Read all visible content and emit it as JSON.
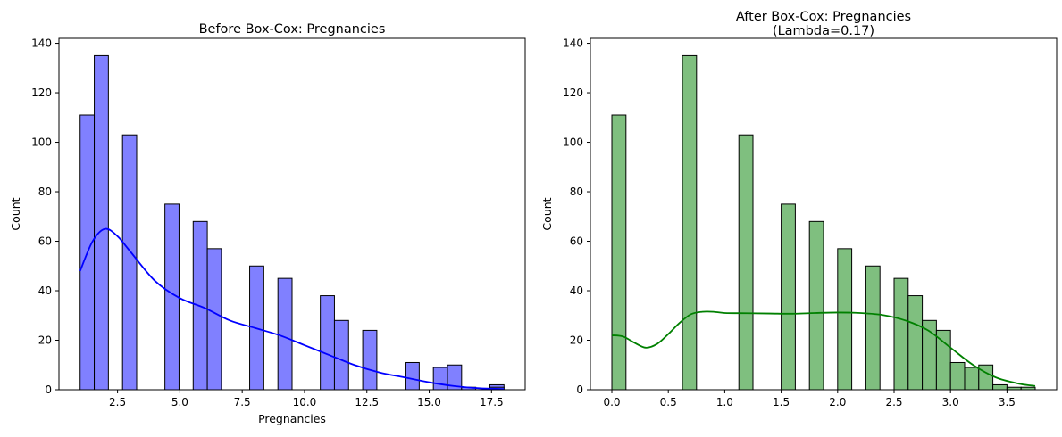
{
  "chart_data": [
    {
      "type": "bar",
      "title": "Before Box-Cox: Pregnancies",
      "xlabel": "Pregnancies",
      "ylabel": "Count",
      "bar_color": "#8080ff",
      "kde_color": "#0000ff",
      "edge_color": "#000000",
      "xlim": [
        0.15,
        18.85
      ],
      "ylim": [
        0,
        142
      ],
      "bin_range": [
        1,
        18
      ],
      "bin_count": 30,
      "counts": [
        111,
        135,
        0,
        103,
        0,
        0,
        75,
        0,
        68,
        57,
        0,
        0,
        50,
        0,
        45,
        0,
        0,
        38,
        28,
        0,
        24,
        0,
        0,
        11,
        0,
        9,
        10,
        0,
        0,
        2
      ],
      "overflow_bins": [
        {
          "x_start": 16.3,
          "x_end": 18.0,
          "values": [
            1,
            0,
            1
          ]
        }
      ],
      "kde": {
        "x": [
          1,
          1.5,
          2,
          2.5,
          3,
          4,
          5,
          6,
          7,
          8,
          9,
          10,
          11,
          12,
          13,
          14,
          15,
          16,
          17,
          18
        ],
        "y": [
          48,
          60,
          65,
          62,
          56,
          44,
          37,
          33,
          28,
          25,
          22,
          18,
          14,
          10,
          7,
          5,
          3,
          1.5,
          0.6,
          0.3
        ]
      },
      "xticks": [
        "2.5",
        "5.0",
        "7.5",
        "10.0",
        "12.5",
        "15.0",
        "17.5"
      ],
      "xtick_values": [
        2.5,
        5.0,
        7.5,
        10.0,
        12.5,
        15.0,
        17.5
      ],
      "yticks": [
        "0",
        "20",
        "40",
        "60",
        "80",
        "100",
        "120",
        "140"
      ],
      "ytick_values": [
        0,
        20,
        40,
        60,
        80,
        100,
        120,
        140
      ]
    },
    {
      "type": "bar",
      "title": "After Box-Cox: Pregnancies",
      "subtitle": "(Lambda=0.17)",
      "xlabel": "",
      "ylabel": "Count",
      "bar_color": "#7fbf7f",
      "kde_color": "#008000",
      "edge_color": "#000000",
      "xlim": [
        -0.19,
        3.94
      ],
      "ylim": [
        0,
        142
      ],
      "bin_range": [
        0,
        3.75
      ],
      "bin_count": 30,
      "counts": [
        111,
        0,
        0,
        0,
        0,
        135,
        0,
        0,
        0,
        103,
        0,
        0,
        75,
        0,
        68,
        0,
        57,
        0,
        50,
        0,
        45,
        38,
        28,
        24,
        11,
        9,
        10,
        2,
        1,
        1
      ],
      "kde": {
        "x": [
          0,
          0.1,
          0.2,
          0.3,
          0.4,
          0.5,
          0.6,
          0.7,
          0.8,
          0.9,
          1.0,
          1.2,
          1.4,
          1.6,
          1.8,
          2.0,
          2.2,
          2.4,
          2.6,
          2.8,
          3.0,
          3.2,
          3.4,
          3.6,
          3.75
        ],
        "y": [
          22,
          21.5,
          19,
          17,
          18.5,
          22.5,
          27,
          30.5,
          31.5,
          31.5,
          31,
          30.9,
          30.8,
          30.7,
          31,
          31.2,
          31,
          30.2,
          28,
          24,
          17,
          10,
          5,
          2.5,
          1.5
        ]
      },
      "xticks": [
        "0.0",
        "0.5",
        "1.0",
        "1.5",
        "2.0",
        "2.5",
        "3.0",
        "3.5"
      ],
      "xtick_values": [
        0,
        0.5,
        1.0,
        1.5,
        2.0,
        2.5,
        3.0,
        3.5
      ],
      "yticks": [
        "0",
        "20",
        "40",
        "60",
        "80",
        "100",
        "120",
        "140"
      ],
      "ytick_values": [
        0,
        20,
        40,
        60,
        80,
        100,
        120,
        140
      ]
    }
  ]
}
